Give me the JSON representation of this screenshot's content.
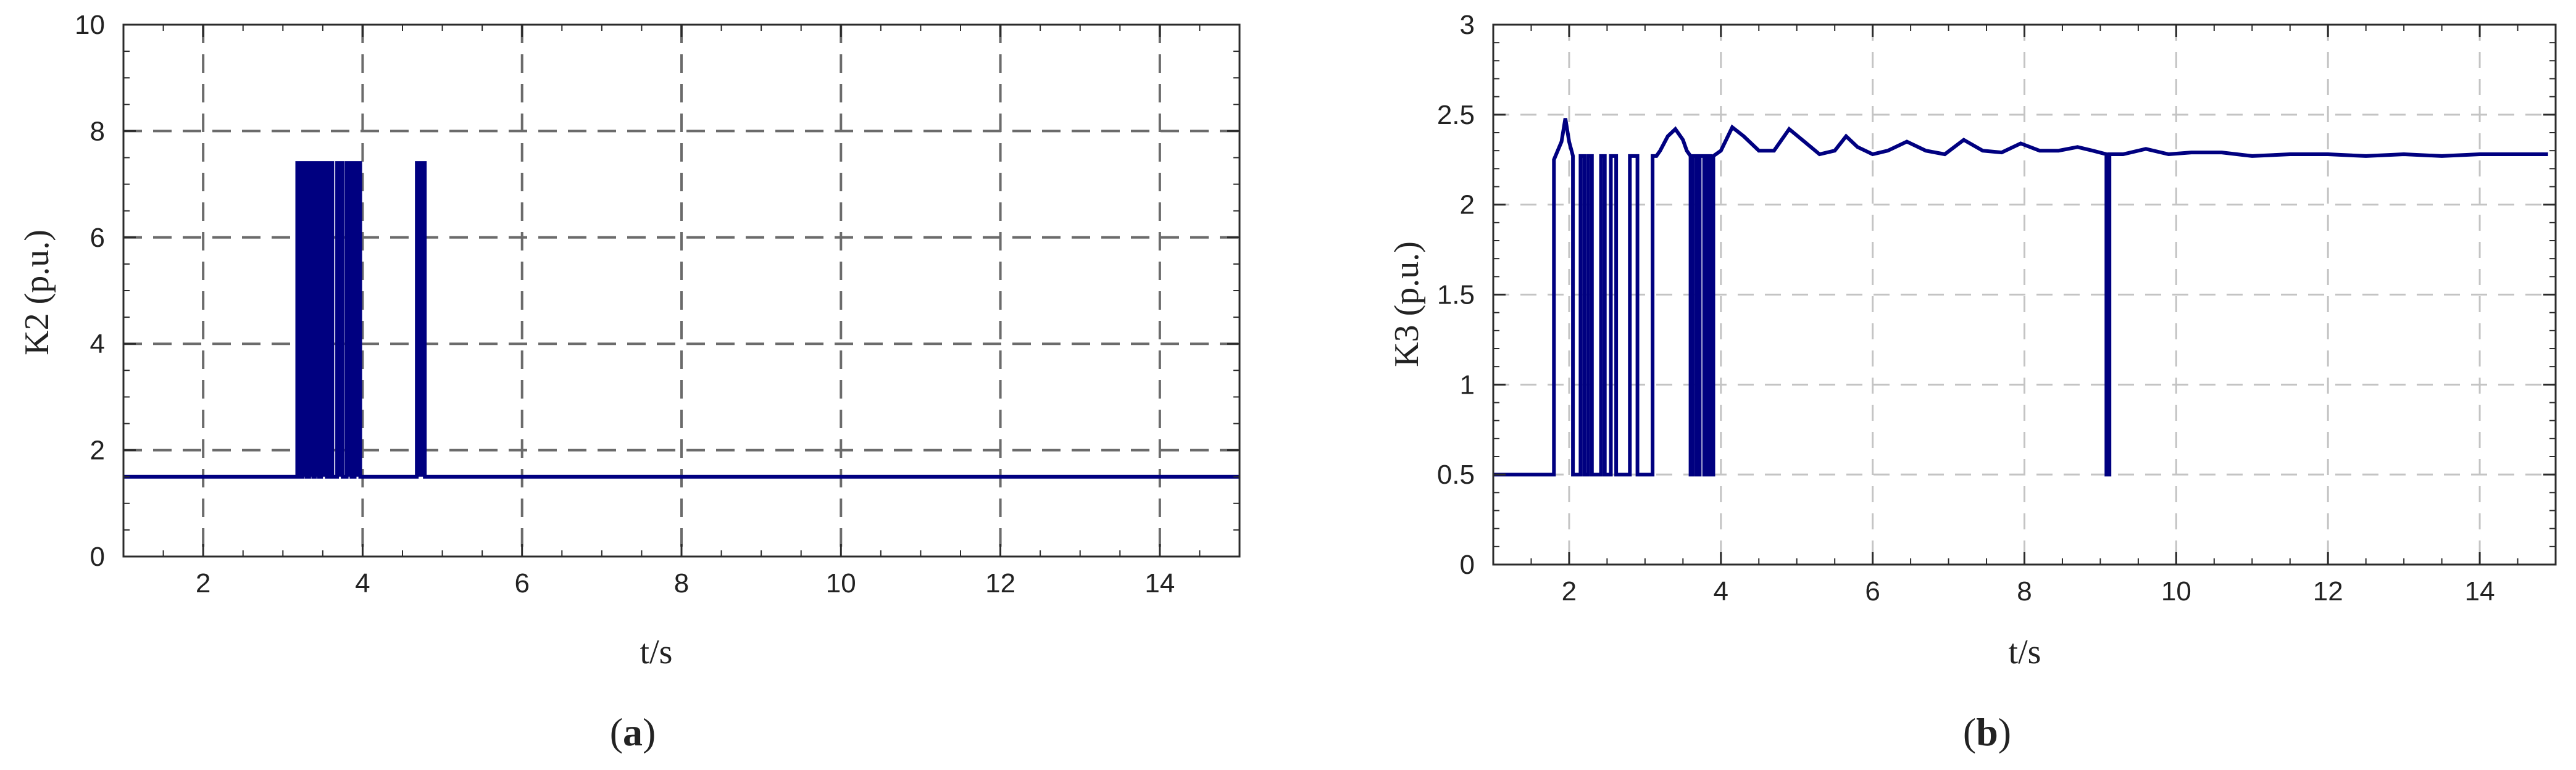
{
  "colors": {
    "line": "#000080",
    "axis": "#2b2b2b",
    "grid_a": "#6b6b6b",
    "grid_b": "#c4c4c4",
    "background": "#ffffff"
  },
  "captions": {
    "a": "a",
    "b": "b"
  },
  "chart_data": [
    {
      "type": "line",
      "panel": "a",
      "title": "",
      "xlabel": "t/s",
      "ylabel": "K2 (p.u.)",
      "xlim": [
        1,
        15
      ],
      "ylim": [
        0,
        10
      ],
      "xticks": [
        2,
        4,
        6,
        8,
        10,
        12,
        14
      ],
      "yticks": [
        0,
        2,
        4,
        6,
        8,
        10
      ],
      "xtick_labels": [
        "2",
        "4",
        "6",
        "8",
        "10",
        "12",
        "14"
      ],
      "ytick_labels": [
        "0",
        "2",
        "4",
        "6",
        "8",
        "10"
      ],
      "grid": true,
      "grid_style": "dashed",
      "baseline": 1.5,
      "pulse_high": 7.4,
      "pulses": [
        [
          3.18,
          3.22
        ],
        [
          3.25,
          3.3
        ],
        [
          3.33,
          3.38
        ],
        [
          3.4,
          3.45
        ],
        [
          3.48,
          3.55
        ],
        [
          3.58,
          3.62
        ],
        [
          3.68,
          3.75
        ],
        [
          3.8,
          3.86
        ],
        [
          3.9,
          3.97
        ],
        [
          4.68,
          4.78
        ]
      ],
      "series": [
        {
          "x": [
            1.0,
            3.18,
            3.18,
            3.22,
            3.22,
            3.25,
            3.25,
            3.3,
            3.3,
            3.33,
            3.33,
            3.38,
            3.38,
            3.4,
            3.4,
            3.45,
            3.45,
            3.48,
            3.48,
            3.55,
            3.55,
            3.58,
            3.58,
            3.62,
            3.62,
            3.68,
            3.68,
            3.75,
            3.75,
            3.8,
            3.8,
            3.86,
            3.86,
            3.9,
            3.9,
            3.97,
            3.97,
            4.68,
            4.68,
            4.78,
            4.78,
            15.0
          ],
          "y": [
            1.5,
            1.5,
            7.4,
            7.4,
            1.5,
            1.5,
            7.4,
            7.4,
            1.5,
            1.5,
            7.4,
            7.4,
            1.5,
            1.5,
            7.4,
            7.4,
            1.5,
            1.5,
            7.4,
            7.4,
            1.5,
            1.5,
            7.4,
            7.4,
            1.5,
            1.5,
            7.4,
            7.4,
            1.5,
            1.5,
            7.4,
            7.4,
            1.5,
            1.5,
            7.4,
            7.4,
            1.5,
            1.5,
            7.4,
            7.4,
            1.5,
            1.5
          ]
        }
      ]
    },
    {
      "type": "line",
      "panel": "b",
      "title": "",
      "xlabel": "t/s",
      "ylabel": "K3 (p.u.)",
      "xlim": [
        1,
        15
      ],
      "ylim": [
        0,
        3
      ],
      "xticks": [
        2,
        4,
        6,
        8,
        10,
        12,
        14
      ],
      "yticks": [
        0,
        0.5,
        1,
        1.5,
        2,
        2.5,
        3
      ],
      "xtick_labels": [
        "2",
        "4",
        "6",
        "8",
        "10",
        "12",
        "14"
      ],
      "ytick_labels": [
        "0",
        "0.5",
        "1",
        "1.5",
        "2",
        "2.5",
        "3"
      ],
      "grid": true,
      "grid_style": "dashed",
      "series": [
        {
          "x": [
            1.0,
            1.8,
            1.8,
            1.9,
            1.95,
            2.0,
            2.05,
            2.05,
            2.15,
            2.15,
            2.2,
            2.2,
            2.25,
            2.25,
            2.3,
            2.3,
            2.42,
            2.42,
            2.47,
            2.47,
            2.55,
            2.55,
            2.62,
            2.62,
            2.8,
            2.8,
            2.9,
            2.9,
            3.1,
            3.1,
            3.15,
            3.2,
            3.3,
            3.4,
            3.5,
            3.55,
            3.6,
            3.6,
            3.63,
            3.63,
            3.68,
            3.68,
            3.72,
            3.72,
            3.78,
            3.78,
            3.82,
            3.82,
            3.86,
            3.86,
            3.9,
            3.9,
            4.0,
            4.15,
            4.3,
            4.5,
            4.7,
            4.9,
            5.1,
            5.3,
            5.5,
            5.65,
            5.8,
            6.0,
            6.2,
            6.45,
            6.7,
            6.95,
            7.2,
            7.45,
            7.7,
            7.95,
            8.2,
            8.45,
            8.7,
            8.9,
            9.08,
            9.08,
            9.12,
            9.12,
            9.3,
            9.6,
            9.9,
            10.2,
            10.6,
            11.0,
            11.5,
            12.0,
            12.5,
            13.0,
            13.5,
            14.0,
            14.5,
            14.9
          ],
          "y": [
            0.5,
            0.5,
            2.25,
            2.35,
            2.48,
            2.35,
            2.27,
            0.5,
            0.5,
            2.27,
            2.27,
            0.5,
            0.5,
            2.27,
            2.27,
            0.5,
            0.5,
            2.27,
            2.27,
            0.5,
            0.5,
            2.27,
            2.27,
            0.5,
            0.5,
            2.27,
            2.27,
            0.5,
            0.5,
            2.27,
            2.27,
            2.3,
            2.38,
            2.42,
            2.36,
            2.3,
            2.27,
            0.5,
            0.5,
            2.27,
            2.27,
            0.5,
            0.5,
            2.27,
            2.27,
            0.5,
            0.5,
            2.27,
            2.27,
            0.5,
            0.5,
            2.27,
            2.3,
            2.43,
            2.38,
            2.3,
            2.3,
            2.42,
            2.35,
            2.28,
            2.3,
            2.38,
            2.32,
            2.28,
            2.3,
            2.35,
            2.3,
            2.28,
            2.36,
            2.3,
            2.29,
            2.34,
            2.3,
            2.3,
            2.32,
            2.3,
            2.28,
            0.5,
            0.5,
            2.28,
            2.28,
            2.31,
            2.28,
            2.29,
            2.29,
            2.27,
            2.28,
            2.28,
            2.27,
            2.28,
            2.27,
            2.28,
            2.28,
            2.28
          ]
        }
      ]
    }
  ]
}
